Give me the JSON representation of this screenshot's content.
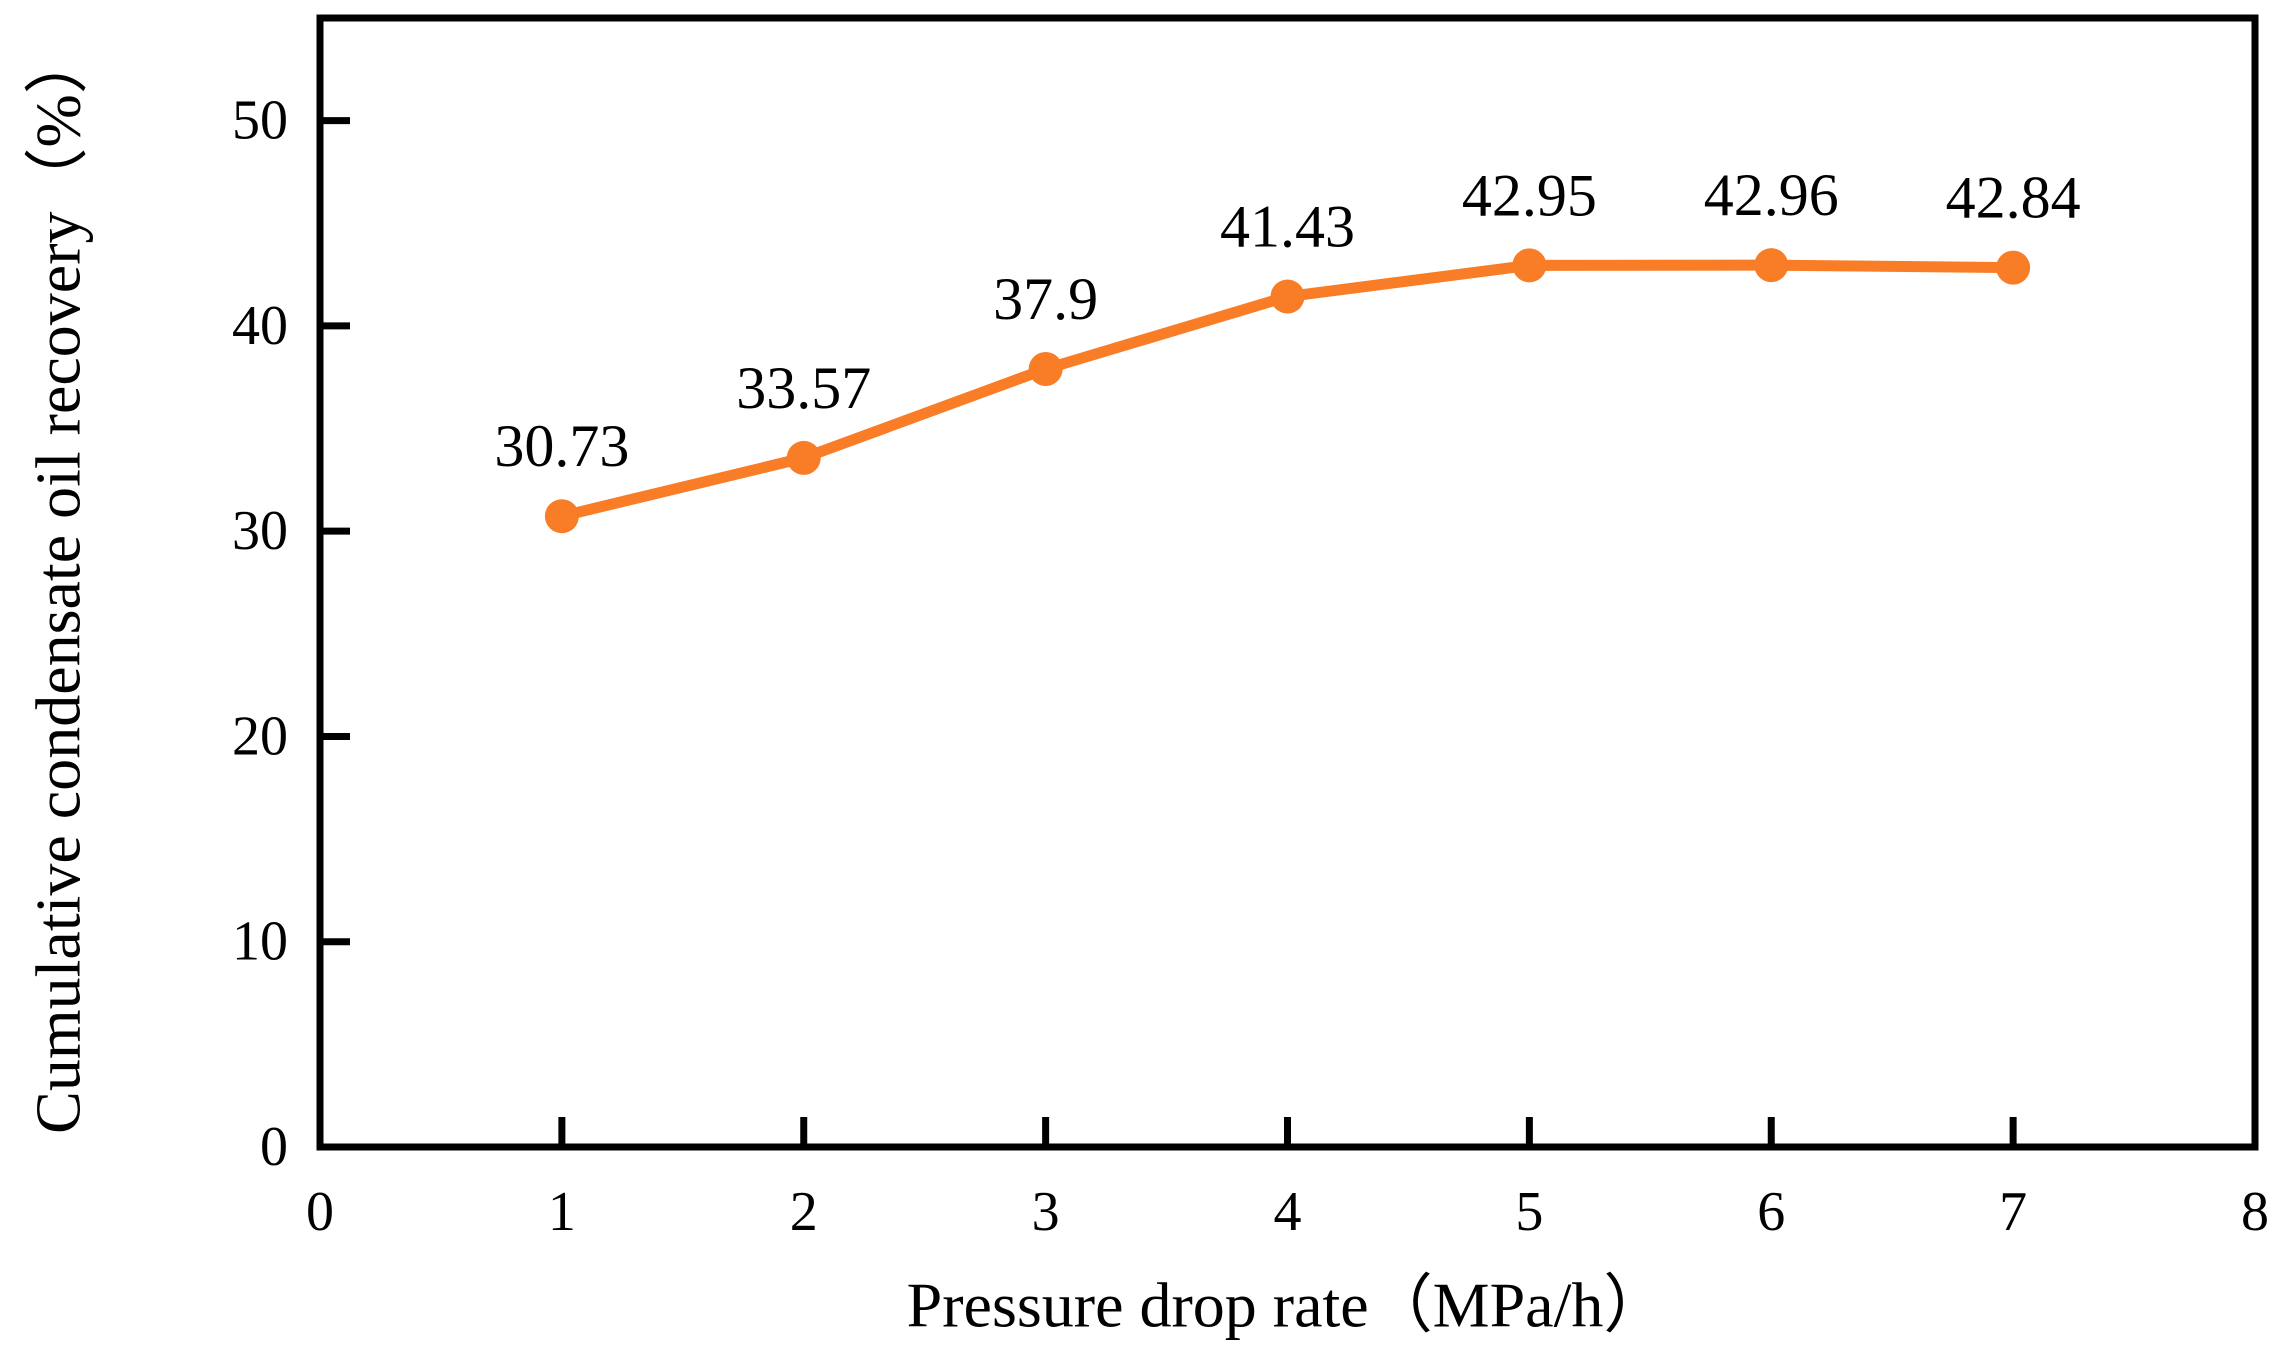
{
  "chart_data": {
    "type": "line",
    "title": "",
    "x": [
      1,
      2,
      3,
      4,
      5,
      6,
      7
    ],
    "y": [
      30.73,
      33.57,
      37.9,
      41.43,
      42.95,
      42.96,
      42.84
    ],
    "point_labels": [
      "30.73",
      "33.57",
      "37.9",
      "41.43",
      "42.95",
      "42.96",
      "42.84"
    ],
    "xlabel": "Pressure drop rate（MPa/h）",
    "ylabel": "Cumulative condensate oil recovery（%）",
    "xlim": [
      0,
      8
    ],
    "ylim": [
      0,
      55
    ],
    "x_ticks": [
      0,
      1,
      2,
      3,
      4,
      5,
      6,
      7,
      8
    ],
    "y_ticks": [
      0,
      10,
      20,
      30,
      40,
      50
    ],
    "grid": false,
    "legend": false,
    "marker": "circle",
    "series_color": "#F87D26",
    "axis_color": "#000000",
    "text_color": "#000000"
  }
}
